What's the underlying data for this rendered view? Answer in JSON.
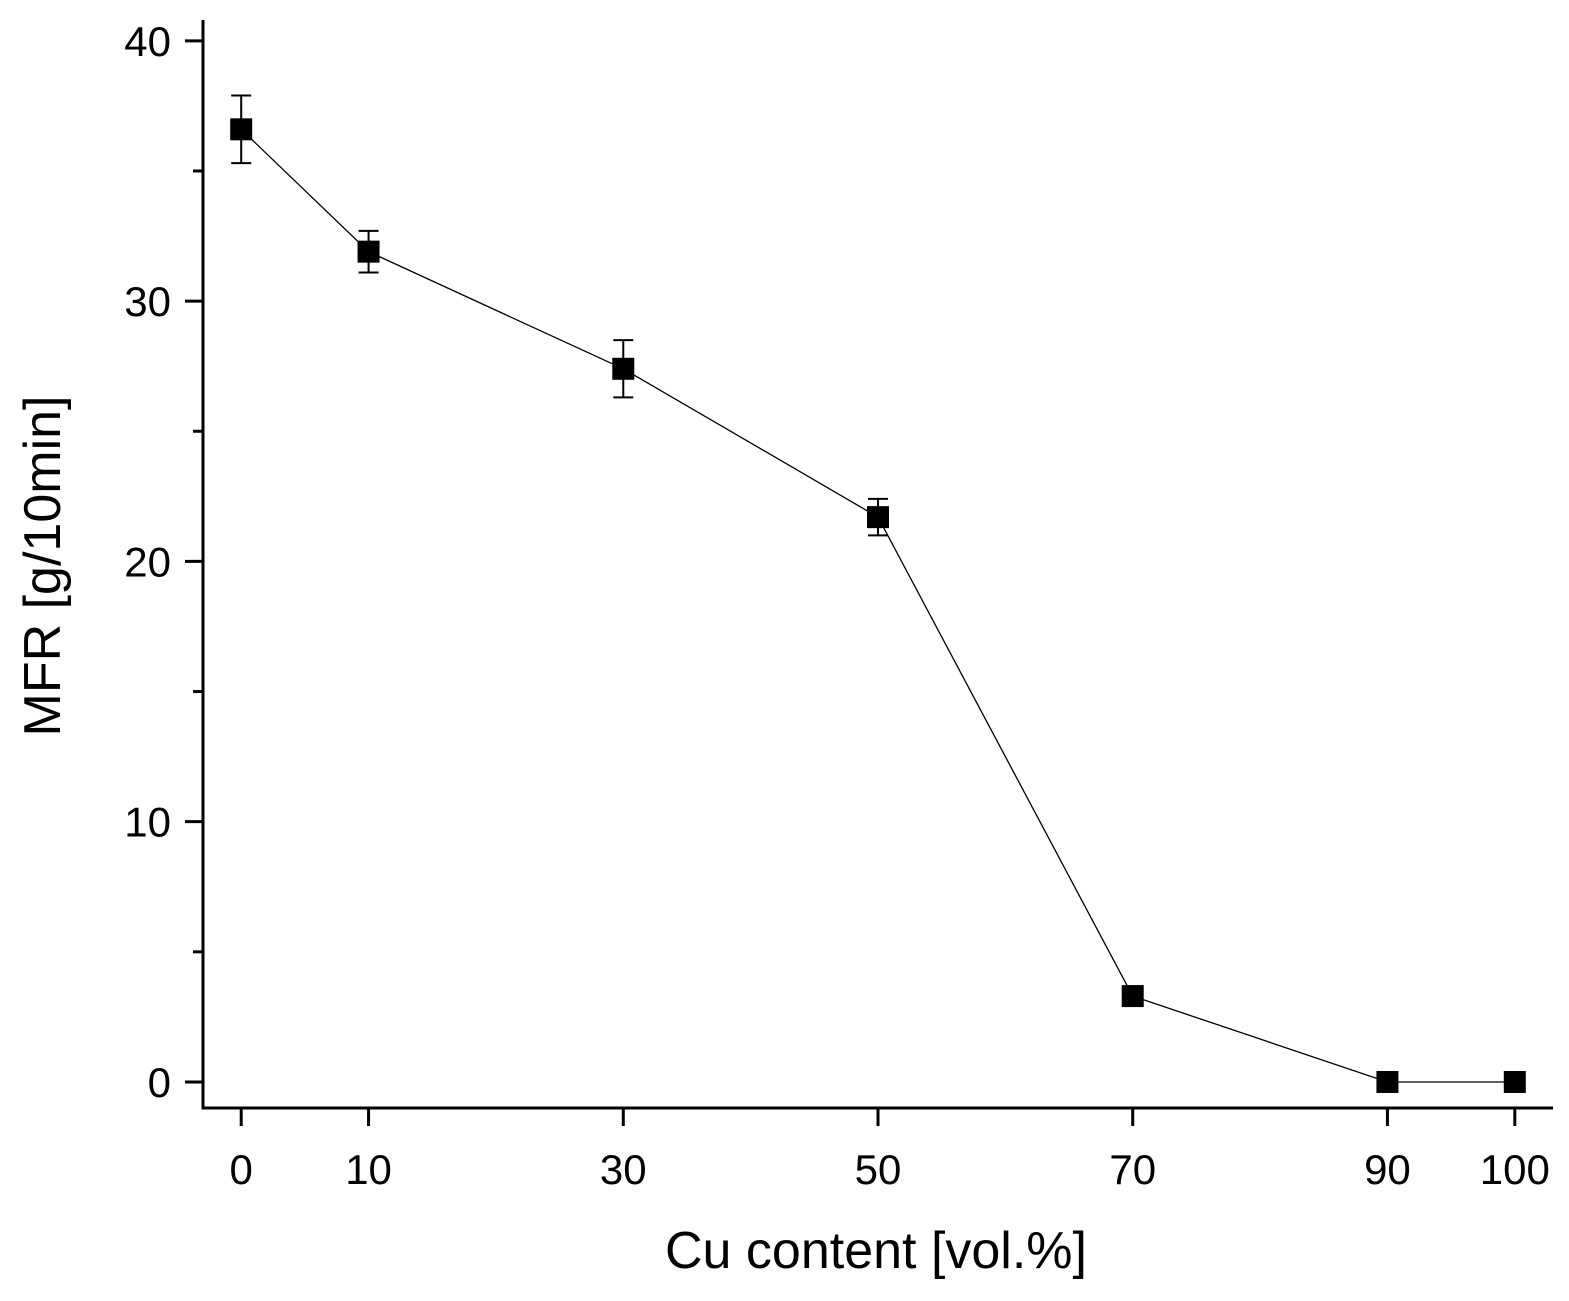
{
  "chart_data": {
    "type": "scatter",
    "mode": "line+markers",
    "title": "",
    "xlabel": "Cu content [vol.%]",
    "ylabel": "MFR [g/10min]",
    "xlim": [
      -3,
      103
    ],
    "ylim": [
      -1,
      40.8
    ],
    "x_ticks": [
      0,
      10,
      30,
      50,
      70,
      90,
      100
    ],
    "y_major_ticks": [
      0,
      10,
      20,
      30,
      40
    ],
    "y_minor_ticks": [
      5,
      15,
      25,
      35
    ],
    "grid": false,
    "legend": "none",
    "marker": "square",
    "color": "#000000",
    "series": [
      {
        "x": [
          0,
          10,
          30,
          50,
          70,
          90,
          100
        ],
        "y": [
          36.6,
          31.9,
          27.4,
          21.7,
          3.3,
          0.0,
          0.0
        ],
        "error": [
          1.3,
          0.8,
          1.1,
          0.7,
          0,
          0,
          0
        ]
      }
    ]
  }
}
